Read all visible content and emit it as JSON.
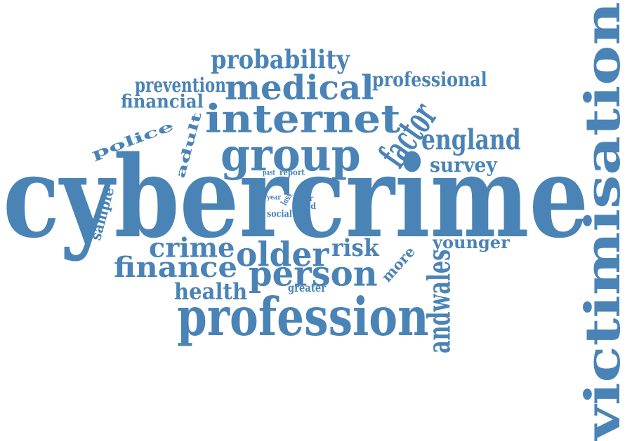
{
  "theme": {
    "word_color": "#4a83b6",
    "background": "#ffffff"
  },
  "words": [
    {
      "text": "cybercrime",
      "rotated": false
    },
    {
      "text": "victimisation",
      "rotated": true
    },
    {
      "text": "profession",
      "rotated": false
    },
    {
      "text": "internet",
      "rotated": false
    },
    {
      "text": "group",
      "rotated": false
    },
    {
      "text": "medical",
      "rotated": false
    },
    {
      "text": "person",
      "rotated": false
    },
    {
      "text": "factor",
      "rotated": true
    },
    {
      "text": "older",
      "rotated": false
    },
    {
      "text": "finance",
      "rotated": false
    },
    {
      "text": "probability",
      "rotated": false
    },
    {
      "text": "crime",
      "rotated": false
    },
    {
      "text": "england",
      "rotated": false
    },
    {
      "text": "police",
      "rotated": true
    },
    {
      "text": "professional",
      "rotated": false
    },
    {
      "text": "health",
      "rotated": false
    },
    {
      "text": "risk",
      "rotated": false
    },
    {
      "text": "more",
      "rotated": true
    },
    {
      "text": "prevention",
      "rotated": false
    },
    {
      "text": "financial",
      "rotated": false
    },
    {
      "text": "survey",
      "rotated": false
    },
    {
      "text": "adult",
      "rotated": true
    },
    {
      "text": "younger",
      "rotated": false
    },
    {
      "text": "andwales",
      "rotated": true
    },
    {
      "text": "sample",
      "rotated": true
    },
    {
      "text": "greater",
      "rotated": false
    },
    {
      "text": "past",
      "rotated": false
    },
    {
      "text": "report",
      "rotated": false
    },
    {
      "text": "year",
      "rotated": false
    },
    {
      "text": "loss",
      "rotated": true
    },
    {
      "text": "poor",
      "rotated": false
    },
    {
      "text": "aged",
      "rotated": false
    },
    {
      "text": "social",
      "rotated": false
    }
  ]
}
